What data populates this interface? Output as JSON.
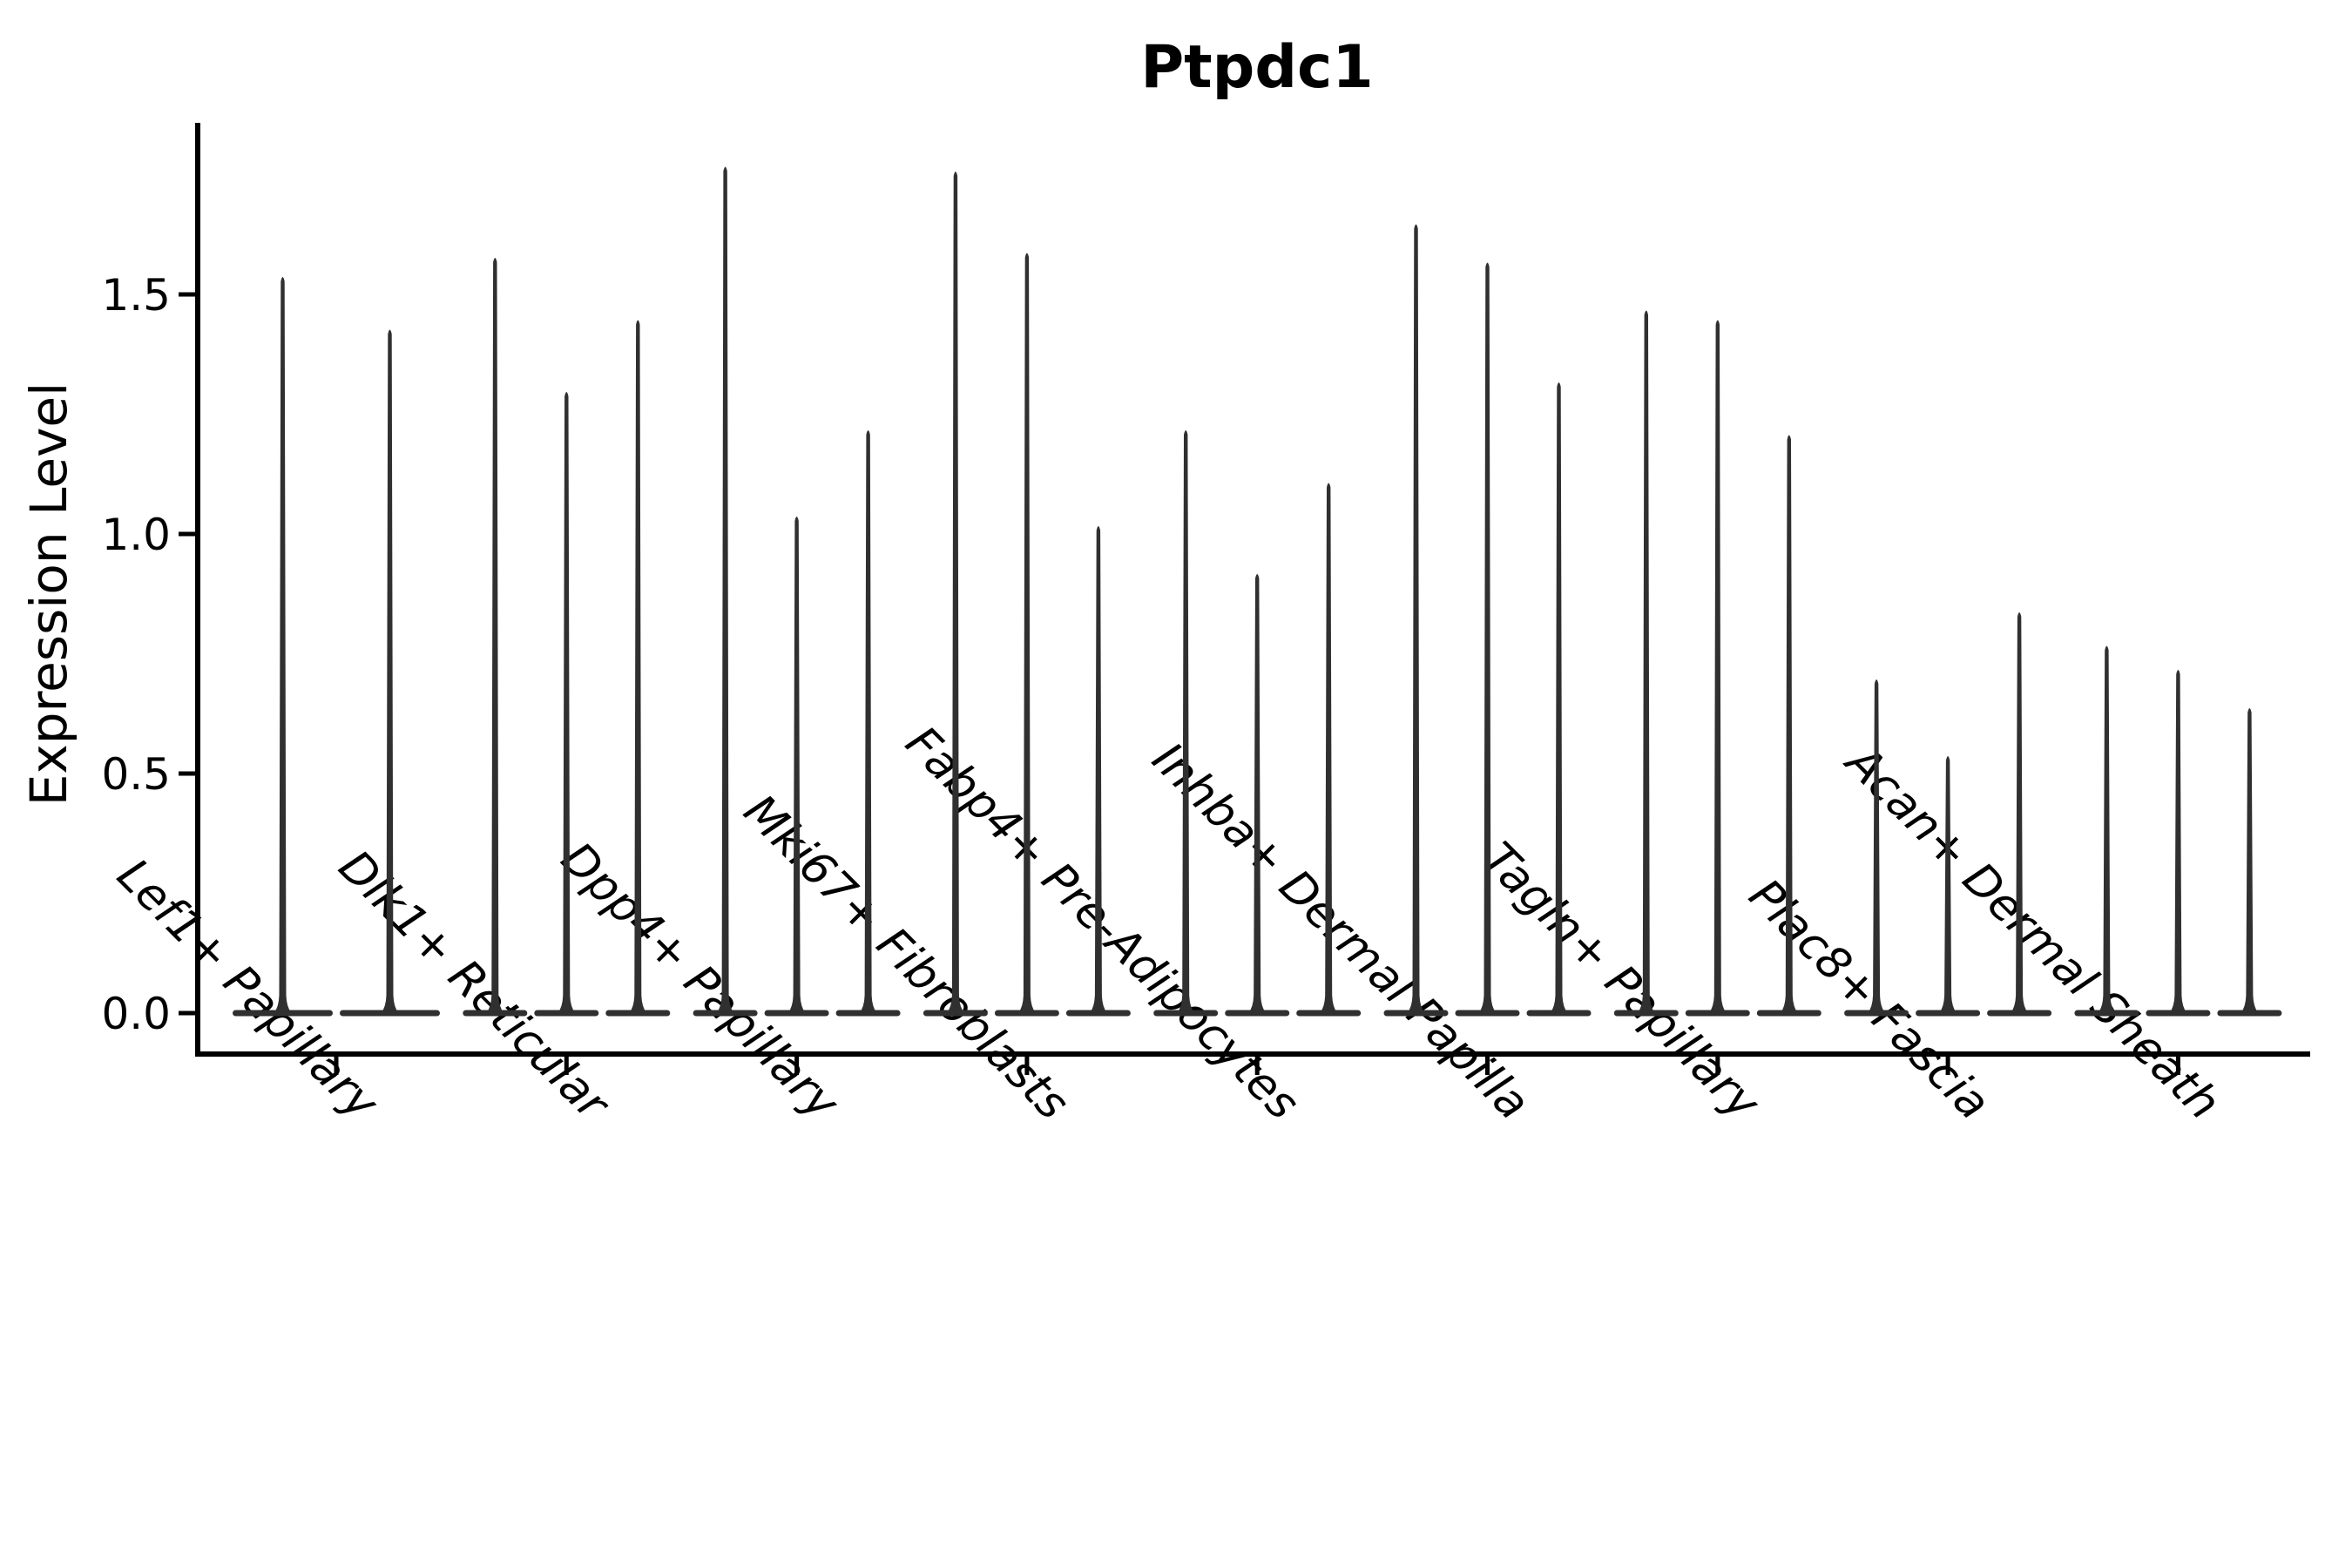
{
  "figure": {
    "background_color": "#ffffff",
    "axis_color": "#000000",
    "violin_color": "#303030"
  },
  "chart_data": {
    "type": "violin",
    "title": "Ptpdc1",
    "xlabel": "",
    "ylabel": "Expression Level",
    "yticks": [
      "0.0",
      "0.5",
      "1.0",
      "1.5"
    ],
    "ytick_values": [
      0.0,
      0.5,
      1.0,
      1.5
    ],
    "ylim": [
      -0.08,
      1.86
    ],
    "grid": false,
    "legend_position": "none",
    "baseline_value": 0,
    "categories": [
      "Lef1+ Papillary",
      "Dlk1+ Reticular",
      "Dpp4+ Papillary",
      "Mki67+ Fibroblasts",
      "Fabp4+ Pre-Adipocytes",
      "Inhba+ Dermal Papilla",
      "Tagln+ Papillary",
      "Plac8+ Fascia",
      "Acan+ Dermal Sheath"
    ],
    "groups": [
      {
        "category": "Lef1+ Papillary",
        "violin_max_expression": [
          1.54,
          1.43
        ]
      },
      {
        "category": "Dlk1+ Reticular",
        "violin_max_expression": [
          1.58,
          1.3,
          1.45
        ]
      },
      {
        "category": "Dpp4+ Papillary",
        "violin_max_expression": [
          1.77,
          1.04,
          1.22
        ]
      },
      {
        "category": "Mki67+ Fibroblasts",
        "violin_max_expression": [
          1.76,
          1.59,
          1.02
        ]
      },
      {
        "category": "Fabp4+ Pre-Adipocytes",
        "violin_max_expression": [
          1.22,
          0.92,
          1.11
        ]
      },
      {
        "category": "Inhba+ Dermal Papilla",
        "violin_max_expression": [
          1.65,
          1.57,
          1.32
        ]
      },
      {
        "category": "Tagln+ Papillary",
        "violin_max_expression": [
          1.47,
          1.45,
          1.21
        ]
      },
      {
        "category": "Plac8+ Fascia",
        "violin_max_expression": [
          0.7,
          0.54,
          0.84
        ]
      },
      {
        "category": "Acan+ Dermal Sheath",
        "violin_max_expression": [
          0.77,
          0.72,
          0.64
        ]
      }
    ]
  }
}
